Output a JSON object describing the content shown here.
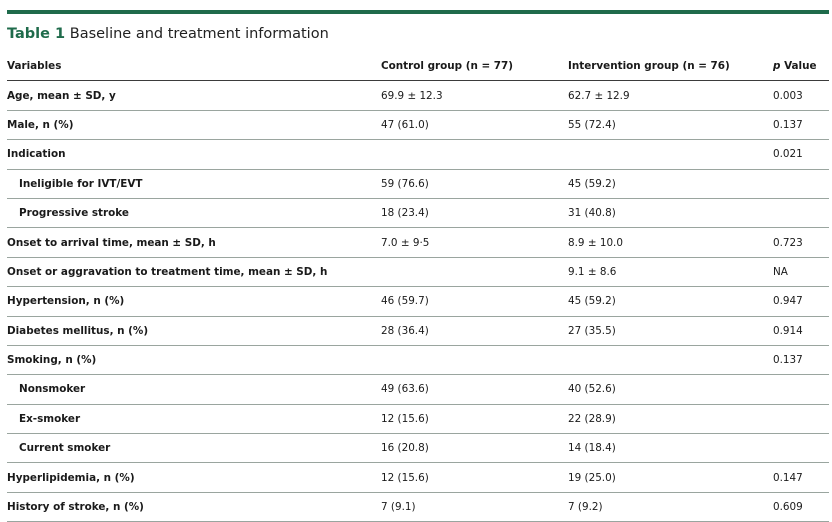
{
  "title": {
    "number": "Table 1",
    "text": "Baseline and treatment information"
  },
  "colors": {
    "accent": "#1f6b4b"
  },
  "table": {
    "headers": {
      "variables": "Variables",
      "control": "Control group (n = 77)",
      "intervention": "Intervention group (n = 76)",
      "p_prefix": "p",
      "p_suffix": " Value"
    },
    "rows": [
      {
        "label": "Age, mean ± SD, y",
        "control": "69.9 ± 12.3",
        "intervention": "62.7 ± 12.9",
        "p": "0.003",
        "indent": false
      },
      {
        "label": "Male, n (%)",
        "control": "47 (61.0)",
        "intervention": "55 (72.4)",
        "p": "0.137",
        "indent": false
      },
      {
        "label": "Indication",
        "control": "",
        "intervention": "",
        "p": "0.021",
        "indent": false
      },
      {
        "label": "Ineligible for IVT/EVT",
        "control": "59 (76.6)",
        "intervention": "45 (59.2)",
        "p": "",
        "indent": true
      },
      {
        "label": "Progressive stroke",
        "control": "18 (23.4)",
        "intervention": "31 (40.8)",
        "p": "",
        "indent": true
      },
      {
        "label": "Onset to arrival time, mean ± SD, h",
        "control": "7.0 ± 9·5",
        "intervention": "8.9 ± 10.0",
        "p": "0.723",
        "indent": false
      },
      {
        "label": "Onset or aggravation to treatment time, mean ± SD, h",
        "control": "",
        "intervention": "9.1 ± 8.6",
        "p": "NA",
        "indent": false
      },
      {
        "label": "Hypertension, n (%)",
        "control": "46 (59.7)",
        "intervention": "45 (59.2)",
        "p": "0.947",
        "indent": false
      },
      {
        "label": "Diabetes mellitus, n (%)",
        "control": "28 (36.4)",
        "intervention": "27 (35.5)",
        "p": "0.914",
        "indent": false
      },
      {
        "label": "Smoking, n (%)",
        "control": "",
        "intervention": "",
        "p": "0.137",
        "indent": false
      },
      {
        "label": "Nonsmoker",
        "control": "49 (63.6)",
        "intervention": "40 (52.6)",
        "p": "",
        "indent": true
      },
      {
        "label": "Ex-smoker",
        "control": "12 (15.6)",
        "intervention": "22 (28.9)",
        "p": "",
        "indent": true
      },
      {
        "label": "Current smoker",
        "control": "16 (20.8)",
        "intervention": "14 (18.4)",
        "p": "",
        "indent": true
      },
      {
        "label": "Hyperlipidemia, n (%)",
        "control": "12 (15.6)",
        "intervention": "19 (25.0)",
        "p": "0.147",
        "indent": false
      },
      {
        "label": "History of stroke, n (%)",
        "control": "7 (9.1)",
        "intervention": "7 (9.2)",
        "p": "0.609",
        "indent": false
      }
    ]
  }
}
